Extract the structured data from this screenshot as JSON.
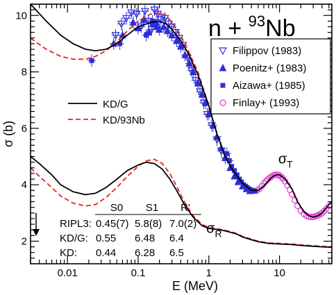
{
  "chart_data": {
    "type": "scatter",
    "title": {
      "prefix": "n + ",
      "superscript": "93",
      "element": "Nb"
    },
    "xlabel": "E (MeV)",
    "ylabel": "σ (b)",
    "xscale": "log",
    "xlim": [
      0.003,
      55
    ],
    "ylim": [
      1.2,
      10.4
    ],
    "xticks": [
      {
        "value": 0.01,
        "label": "0.01"
      },
      {
        "value": 0.1,
        "label": "0.1"
      },
      {
        "value": 1,
        "label": "1"
      },
      {
        "value": 10,
        "label": "10"
      }
    ],
    "yticks": [
      2,
      4,
      6,
      8,
      10
    ],
    "grid": false,
    "legend_curves": [
      {
        "name": "KD/G",
        "style": "solid",
        "color": "#000000"
      },
      {
        "name": "KD/93Nb",
        "style": "dashed",
        "color": "#e8211c"
      }
    ],
    "legend_data": [
      {
        "name": "Filippov (1983)",
        "marker": "open-triangle-down",
        "color": "#2c2cd9"
      },
      {
        "name": "Poenitz+ (1983)",
        "marker": "filled-triangle-up",
        "color": "#2c2cd9"
      },
      {
        "name": "Aizawa+ (1985)",
        "marker": "filled-square",
        "color": "#2c2cd9"
      },
      {
        "name": "Finlay+ (1993)",
        "marker": "open-circle",
        "color": "#e23ad9"
      }
    ],
    "curve_labels": [
      {
        "sym": "σ",
        "sub": "T",
        "x": 9.6,
        "y": 4.75
      },
      {
        "sym": "σ",
        "sub": "R",
        "x": 0.92,
        "y": 2.3
      }
    ],
    "table": {
      "headers": [
        "S0",
        "S1",
        "R'"
      ],
      "rows": [
        {
          "label": "RIPL3:",
          "values": [
            "0.45(7)",
            "5.8(8)",
            "7.0(2)"
          ]
        },
        {
          "label": "KD/G:",
          "values": [
            "0.55",
            "6.48",
            "6.4"
          ]
        },
        {
          "label": "KD:",
          "values": [
            "0.44",
            "6.28",
            "6.5"
          ]
        }
      ]
    },
    "series": [
      {
        "name": "KD/G",
        "color": "#000000",
        "style": "solid",
        "x": [
          0.003,
          0.005,
          0.008,
          0.012,
          0.018,
          0.025,
          0.035,
          0.05,
          0.07,
          0.1,
          0.15,
          0.2,
          0.25,
          0.3,
          0.4,
          0.5,
          0.7,
          1.0,
          1.3,
          1.7,
          2.2,
          3.0,
          4.0,
          5.0,
          6.0,
          7.0,
          8.0,
          9.0,
          10.0,
          12.0,
          15.0,
          18.0,
          22.0,
          26.0,
          30.0,
          35.0,
          40.0,
          45.0,
          50.0,
          55.0
        ],
        "y": [
          10.4,
          9.8,
          9.3,
          9.0,
          8.8,
          8.75,
          8.8,
          9.0,
          9.3,
          9.6,
          9.75,
          9.8,
          9.7,
          9.5,
          9.1,
          8.7,
          7.9,
          6.8,
          5.8,
          5.0,
          4.5,
          4.05,
          3.8,
          3.8,
          3.95,
          4.15,
          4.3,
          4.35,
          4.35,
          4.2,
          3.85,
          3.4,
          3.05,
          2.9,
          2.85,
          2.9,
          3.0,
          3.15,
          3.3,
          3.4
        ]
      },
      {
        "name": "KD/93Nb",
        "color": "#e8211c",
        "style": "dashed",
        "x": [
          0.003,
          0.005,
          0.008,
          0.012,
          0.018,
          0.025,
          0.035,
          0.05,
          0.07,
          0.1,
          0.15,
          0.2,
          0.25,
          0.3,
          0.4,
          0.5,
          0.7,
          1.0,
          1.3,
          1.7,
          2.2,
          3.0,
          4.0,
          5.0,
          6.0,
          7.0,
          8.0,
          9.0,
          10.0,
          12.0,
          15.0,
          18.0,
          22.0,
          26.0,
          30.0,
          35.0,
          40.0,
          45.0,
          50.0,
          55.0
        ],
        "y": [
          9.2,
          8.8,
          8.55,
          8.45,
          8.45,
          8.55,
          8.75,
          9.05,
          9.45,
          9.8,
          10.05,
          10.1,
          10.0,
          9.75,
          9.25,
          8.8,
          8.0,
          6.8,
          5.8,
          5.0,
          4.5,
          4.05,
          3.8,
          3.8,
          3.95,
          4.15,
          4.3,
          4.35,
          4.35,
          4.2,
          3.85,
          3.4,
          3.05,
          2.9,
          2.85,
          2.9,
          3.0,
          3.15,
          3.3,
          3.4
        ]
      },
      {
        "name": "σR KD/G",
        "color": "#000000",
        "style": "solid",
        "x": [
          0.003,
          0.004,
          0.006,
          0.008,
          0.012,
          0.018,
          0.025,
          0.035,
          0.05,
          0.07,
          0.1,
          0.13,
          0.17,
          0.22,
          0.28,
          0.35,
          0.45,
          0.6,
          0.8,
          1.0,
          1.3,
          1.6,
          2.0,
          2.5,
          3.0,
          4.0,
          5.0,
          7.0,
          10.0,
          15.0,
          20.0,
          30.0,
          40.0,
          55.0
        ],
        "y": [
          5.0,
          4.75,
          4.35,
          4.0,
          3.75,
          3.65,
          3.7,
          3.9,
          4.2,
          4.5,
          4.7,
          4.8,
          4.75,
          4.55,
          4.2,
          3.8,
          3.3,
          2.85,
          2.55,
          2.45,
          2.42,
          2.38,
          2.32,
          2.25,
          2.15,
          2.05,
          1.98,
          1.92,
          1.9,
          1.88,
          1.85,
          1.82,
          1.8,
          1.78
        ]
      },
      {
        "name": "σR KD/93Nb",
        "color": "#e8211c",
        "style": "dashed",
        "x": [
          0.003,
          0.004,
          0.006,
          0.008,
          0.012,
          0.018,
          0.025,
          0.035,
          0.05,
          0.07,
          0.1,
          0.13,
          0.17,
          0.22,
          0.28,
          0.35,
          0.45,
          0.6,
          0.8,
          1.0,
          1.3,
          1.6,
          2.0,
          2.5,
          3.0,
          4.0,
          5.0,
          7.0,
          10.0,
          15.0,
          20.0,
          30.0,
          40.0,
          55.0
        ],
        "y": [
          4.6,
          4.3,
          3.9,
          3.6,
          3.35,
          3.25,
          3.3,
          3.55,
          3.9,
          4.3,
          4.65,
          4.85,
          4.9,
          4.75,
          4.4,
          3.95,
          3.4,
          2.9,
          2.6,
          2.48,
          2.44,
          2.4,
          2.34,
          2.27,
          2.17,
          2.07,
          2.0,
          1.94,
          1.92,
          1.9,
          1.87,
          1.84,
          1.82,
          1.8
        ]
      },
      {
        "name": "Filippov (1983)",
        "color": "#2c2cd9",
        "marker": "open-triangle-down",
        "x": [
          0.048,
          0.058,
          0.068,
          0.08,
          0.095,
          0.11,
          0.125,
          0.14,
          0.155,
          0.17,
          0.19,
          0.21,
          0.24,
          0.27,
          0.3,
          0.34,
          0.38,
          0.43,
          0.5,
          0.57,
          0.65,
          0.75,
          0.85,
          0.95,
          1.1,
          1.3,
          1.5
        ],
        "y": [
          9.3,
          9.7,
          9.9,
          10.1,
          10.05,
          9.6,
          10.15,
          9.8,
          9.5,
          10.2,
          10.05,
          9.85,
          9.9,
          9.7,
          9.6,
          9.4,
          9.2,
          8.95,
          8.5,
          8.05,
          7.7,
          7.3,
          6.9,
          6.5,
          6.1,
          5.6,
          5.2
        ]
      },
      {
        "name": "Poenitz+ (1983)",
        "color": "#2c2cd9",
        "marker": "filled-triangle-up",
        "x": [
          0.045,
          0.06,
          0.085,
          0.1,
          0.12,
          0.14,
          0.16,
          0.18,
          0.2,
          0.23,
          0.26,
          0.3,
          0.35,
          0.4,
          0.46,
          0.53,
          0.6,
          0.7,
          0.8,
          0.9,
          1.0,
          1.15,
          1.3,
          1.5,
          1.7,
          2.0,
          2.3,
          2.6,
          3.0,
          3.4,
          3.8
        ],
        "y": [
          9.0,
          9.3,
          9.75,
          9.55,
          9.85,
          9.4,
          9.7,
          9.75,
          9.5,
          9.6,
          9.45,
          9.3,
          9.1,
          8.9,
          8.6,
          8.3,
          8.0,
          7.6,
          7.2,
          6.9,
          6.5,
          6.1,
          5.7,
          5.3,
          4.95,
          4.6,
          4.3,
          4.1,
          3.95,
          3.85,
          3.78
        ]
      },
      {
        "name": "Aizawa+ (1985)",
        "color": "#2c2cd9",
        "marker": "filled-square",
        "x": [
          0.022,
          0.055,
          0.13,
          0.16,
          0.18,
          1.8,
          1.95,
          2.1,
          2.3,
          2.5,
          2.7,
          2.9,
          3.1,
          3.3,
          3.5,
          3.7,
          3.9,
          4.1,
          4.3,
          4.5
        ],
        "y": [
          8.4,
          9.0,
          9.3,
          9.8,
          9.6,
          5.1,
          4.85,
          4.65,
          4.5,
          4.35,
          4.2,
          4.1,
          4.0,
          3.95,
          3.9,
          3.85,
          3.82,
          3.8,
          3.78,
          3.77
        ]
      },
      {
        "name": "Finlay+ (1993)",
        "color": "#e23ad9",
        "marker": "open-circle",
        "x": [
          4.8,
          5.2,
          5.6,
          6.0,
          6.4,
          6.8,
          7.2,
          7.6,
          8.0,
          8.5,
          9.0,
          9.5,
          10.0,
          10.6,
          11.2,
          12.0,
          13.0,
          14.0,
          15.0,
          16.5,
          18.0,
          20.0,
          22.0,
          24.0,
          26.0,
          28.0,
          30.0,
          32.0,
          34.0,
          36.0,
          38.0,
          40.0,
          43.0,
          46.0,
          50.0
        ],
        "y": [
          3.8,
          3.85,
          3.95,
          4.05,
          4.12,
          4.18,
          4.24,
          4.28,
          4.32,
          4.35,
          4.36,
          4.35,
          4.33,
          4.28,
          4.22,
          4.12,
          3.98,
          3.82,
          3.66,
          3.45,
          3.25,
          3.08,
          2.97,
          2.9,
          2.87,
          2.86,
          2.86,
          2.88,
          2.9,
          2.93,
          2.96,
          3.0,
          3.07,
          3.15,
          3.25
        ]
      }
    ]
  }
}
